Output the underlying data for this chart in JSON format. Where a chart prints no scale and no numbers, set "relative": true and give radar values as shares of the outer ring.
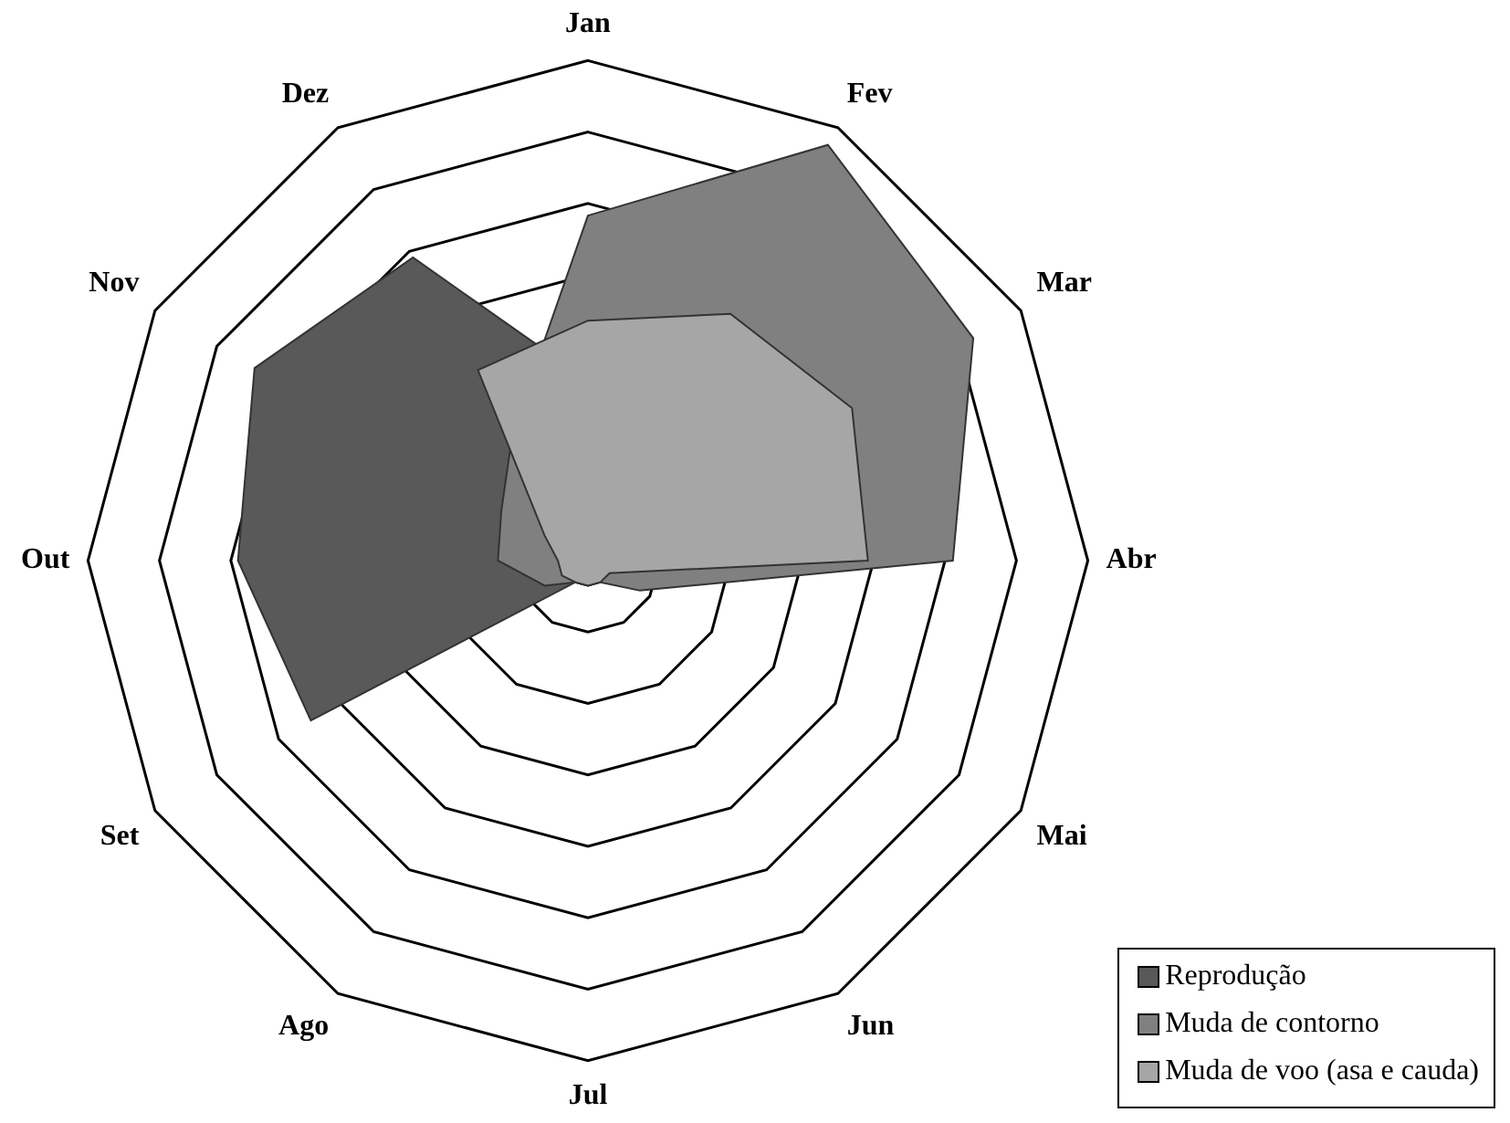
{
  "chart_data": {
    "type": "radar",
    "relative": true,
    "grid": true,
    "legend": "bottom right",
    "marker": "none",
    "categories": [
      "Jan",
      "Fev",
      "Mar",
      "Abr",
      "Mai",
      "Jun",
      "Jul",
      "Ago",
      "Set",
      "Out",
      "Nov",
      "Dez"
    ],
    "series": [
      {
        "name": "Reprodução",
        "color": "#595959",
        "values": [
          0.36,
          0.05,
          0.05,
          0.05,
          0.05,
          0.05,
          0.05,
          0.05,
          0.64,
          0.7,
          0.77,
          0.7
        ]
      },
      {
        "name": "Muda de contorno",
        "color": "#808080",
        "values": [
          0.69,
          0.96,
          0.89,
          0.73,
          0.12,
          0.05,
          0.05,
          0.05,
          0.1,
          0.18,
          0.2,
          0.3
        ]
      },
      {
        "name": "Muda de voo (asa e cauda)",
        "color": "#a6a6a6",
        "values": [
          0.48,
          0.57,
          0.61,
          0.56,
          0.05,
          0.05,
          0.05,
          0.05,
          0.06,
          0.06,
          0.1,
          0.44
        ]
      }
    ]
  }
}
